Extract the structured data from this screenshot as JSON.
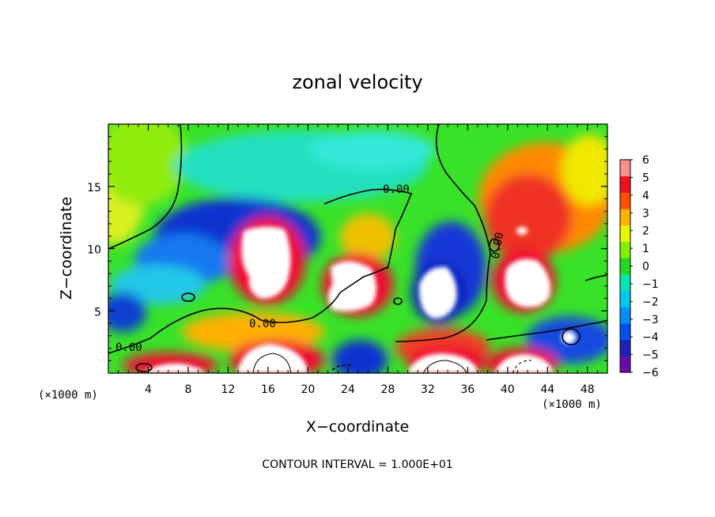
{
  "chart_data": {
    "type": "heatmap",
    "title": "zonal velocity",
    "xlabel": "X−coordinate",
    "ylabel": "Z−coordinate",
    "x_unit_label": "(×1000 m)",
    "z_unit_label": "(×1000 m)",
    "xlim": [
      0,
      50
    ],
    "ylim": [
      0,
      20
    ],
    "x_ticks": [
      "4",
      "8",
      "12",
      "16",
      "20",
      "24",
      "28",
      "32",
      "36",
      "40",
      "44",
      "48"
    ],
    "y_ticks": [
      "5",
      "10",
      "15"
    ],
    "colorbar": {
      "min": -6,
      "max": 6,
      "ticks": [
        "6",
        "5",
        "4",
        "3",
        "2",
        "1",
        "0",
        "−1",
        "−2",
        "−3",
        "−4",
        "−5",
        "−6"
      ],
      "colors": [
        "#6a0aa8",
        "#2020b8",
        "#0050f0",
        "#0090f8",
        "#00c8f0",
        "#00e8b0",
        "#20dc20",
        "#80f000",
        "#e8f800",
        "#ffb000",
        "#ff5000",
        "#f01020",
        "#f89090"
      ]
    },
    "contour_labels": [
      "0.00",
      "0.00",
      "0.00",
      "0.00"
    ],
    "contour_interval_note": "CONTOUR INTERVAL = 1.000E+01",
    "grid": false
  }
}
